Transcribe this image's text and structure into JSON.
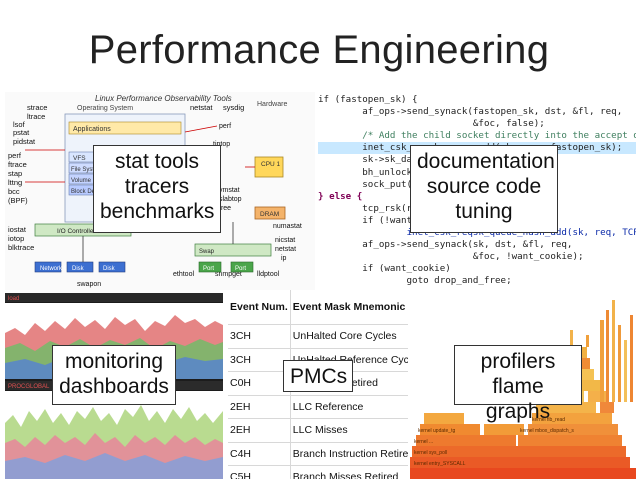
{
  "title": "Performance Engineering",
  "callouts": {
    "tools": [
      "stat tools",
      "tracers",
      "benchmarks"
    ],
    "docs": [
      "documentation",
      "source code",
      "tuning"
    ],
    "monitoring": [
      "monitoring",
      "dashboards"
    ],
    "pmcs": "PMCs",
    "profilers": [
      "profilers",
      "flame graphs"
    ]
  },
  "diagram": {
    "heading": "Linux Performance Observability Tools",
    "tools_left": [
      "strace",
      "ltrace",
      "lsof",
      "pstat",
      "pidstat",
      "perf",
      "ftrace",
      "stap",
      "lttng",
      "bcc",
      "(BPF)",
      "iostat",
      "iotop",
      "blktrace"
    ],
    "tools_top": [
      "Operating System",
      "netstat",
      "sysdig",
      "Hardware"
    ],
    "tools_right": [
      "perf",
      "vmstat",
      "slabtop",
      "free",
      "tiptop",
      "numastat",
      "nicstat",
      "netstat",
      "ip",
      "ethtool",
      "snmpget",
      "lldptool",
      "swapon"
    ],
    "boxes": [
      "Applications",
      "VFS",
      "File Systems",
      "Volume Manager",
      "Block Device",
      "CPU 1",
      "DRAM",
      "I/O Controller",
      "Network Controller",
      "Disk",
      "Disk",
      "Swap",
      "Port",
      "Port"
    ]
  },
  "code_lines": [
    "if (fastopen_sk) {",
    "        af_ops->send_synack(fastopen_sk, dst, &fl, req,",
    "                            &foc, false);",
    "        /* Add the child socket directly into the accept queue */",
    "        inet_csk_reqsk_queue_add(sk, req, fastopen_sk);",
    "        sk->sk_data_ready(sk);",
    "        bh_unlock_sock(fastopen_sk);",
    "        sock_put(fastopen_sk);",
    "} else {",
    "        tcp_rsk(req)->tfo_listener = false;",
    "        if (!want_cookie)",
    "                inet_csk_reqsk_queue_hash_add(sk, req, TCP_TIMEOUT_INIT);",
    "        af_ops->send_synack(sk, dst, &fl, req,",
    "                            &foc, !want_cookie);",
    "        if (want_cookie)",
    "                goto drop_and_free;"
  ],
  "pmc_table": {
    "headers": [
      "Event Num.",
      "Event Mask Mnemonic"
    ],
    "rows": [
      [
        "3CH",
        "UnHalted Core Cycles"
      ],
      [
        "3CH",
        "UnHalted Reference Cycles"
      ],
      [
        "C0H",
        "Instruction Retired"
      ],
      [
        "2EH",
        "LLC Reference"
      ],
      [
        "2EH",
        "LLC Misses"
      ],
      [
        "C4H",
        "Branch Instruction Retired"
      ],
      [
        "C5H",
        "Branch Misses Retired"
      ]
    ]
  },
  "dashboard": {
    "panel_titles": [
      "load",
      "PROCGLOBAL"
    ]
  },
  "flame": {
    "frames": [
      "kernel mbox_dispatch_s",
      "kernel fib_read",
      "kernel update_tg",
      "kernel ... ",
      "kernel sys_poll",
      "kernel entry_SYSCALL"
    ]
  },
  "colors": {
    "flame_base": "#e8481f",
    "flame_mid": "#f08a30",
    "flame_top": "#f2c45a",
    "dash_bg": "#1c1c1c"
  }
}
